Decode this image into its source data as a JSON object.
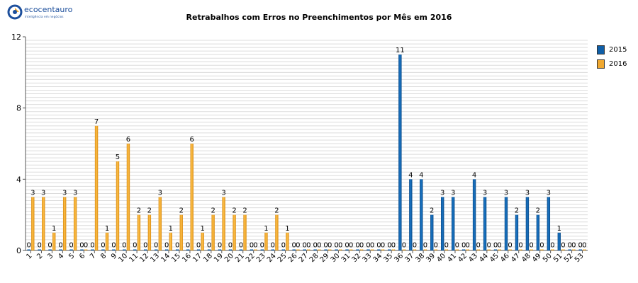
{
  "logo": {
    "brand": "ecocentauro",
    "tagline": "inteligência em negócios"
  },
  "chart_data": {
    "type": "bar",
    "title": "Retrabalhos com Erros no Preenchimentos por Mês em 2016",
    "xlabel": "",
    "ylabel": "",
    "ylim": [
      0,
      12
    ],
    "yticks": [
      0,
      4,
      8,
      12
    ],
    "grid": true,
    "legend_position": "right",
    "categories": [
      "1",
      "2",
      "3",
      "4",
      "5",
      "6",
      "7",
      "8",
      "9",
      "10",
      "11",
      "12",
      "13",
      "14",
      "15",
      "16",
      "17",
      "18",
      "19",
      "20",
      "21",
      "22",
      "23",
      "24",
      "25",
      "26",
      "27",
      "28",
      "29",
      "30",
      "31",
      "32",
      "33",
      "34",
      "35",
      "36",
      "37",
      "38",
      "39",
      "40",
      "41",
      "42",
      "43",
      "44",
      "45",
      "46",
      "47",
      "48",
      "49",
      "50",
      "51",
      "52",
      "53"
    ],
    "series": [
      {
        "name": "2015",
        "color": "#0f5fa8",
        "values": [
          0,
          0,
          0,
          0,
          0,
          0,
          0,
          0,
          0,
          0,
          0,
          0,
          0,
          0,
          0,
          0,
          0,
          0,
          0,
          0,
          0,
          0,
          0,
          0,
          0,
          0,
          0,
          0,
          0,
          0,
          0,
          0,
          0,
          0,
          0,
          11,
          4,
          4,
          2,
          3,
          3,
          0,
          4,
          3,
          0,
          3,
          2,
          3,
          2,
          3,
          1,
          0,
          0
        ]
      },
      {
        "name": "2016",
        "color": "#f0a830",
        "values": [
          3,
          3,
          1,
          3,
          3,
          0,
          7,
          1,
          5,
          6,
          2,
          2,
          3,
          1,
          2,
          6,
          1,
          2,
          3,
          2,
          2,
          0,
          1,
          2,
          1,
          0,
          0,
          0,
          0,
          0,
          0,
          0,
          0,
          0,
          0,
          0,
          0,
          0,
          0,
          0,
          0,
          0,
          0,
          0,
          0,
          0,
          0,
          0,
          0,
          0,
          0,
          0,
          0
        ]
      }
    ]
  }
}
